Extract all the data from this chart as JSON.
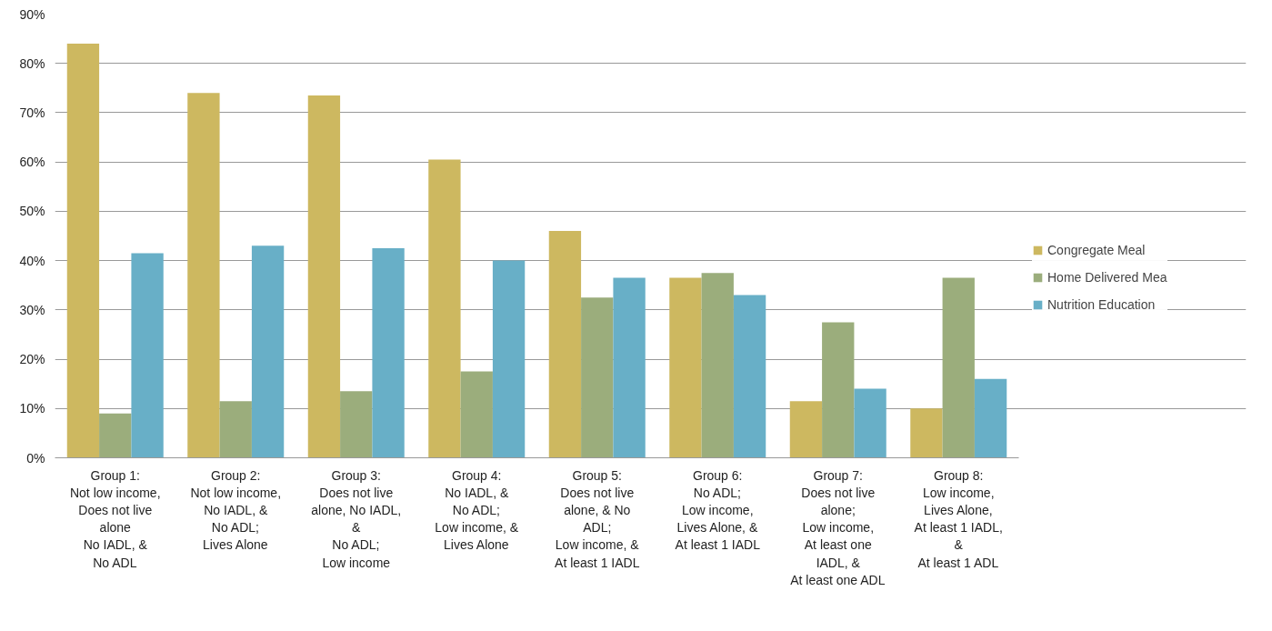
{
  "chart_data": {
    "type": "bar",
    "categories": [
      "Group 1:\nNot low income,\nDoes not live\nalone\nNo IADL, &\nNo ADL",
      "Group 2:\nNot low income,\nNo IADL, &\nNo ADL;\nLives Alone",
      "Group 3:\nDoes not live\nalone, No IADL,\n&\nNo ADL;\nLow income",
      "Group 4:\nNo IADL, &\nNo ADL;\nLow income, &\nLives Alone",
      "Group 5:\nDoes not live\nalone, & No\nADL;\nLow income, &\nAt least 1 IADL",
      "Group 6:\nNo ADL;\nLow income,\nLives Alone, &\nAt least 1 IADL",
      "Group 7:\nDoes not live\nalone;\nLow income,\nAt least one\nIADL, &\nAt least one ADL",
      "Group 8:\nLow income,\nLives Alone,\nAt least 1 IADL,\n&\nAt least 1 ADL"
    ],
    "series": [
      {
        "name": "Congregate Meal",
        "color": "#cdb860",
        "values": [
          84,
          74,
          73.5,
          60.5,
          46,
          36.5,
          11.5,
          10
        ]
      },
      {
        "name": "Home Delivered Mea",
        "color": "#9bad7c",
        "values": [
          9,
          11.5,
          13.5,
          17.5,
          32.5,
          37.5,
          27.5,
          36.5
        ]
      },
      {
        "name": "Nutrition Education",
        "color": "#68afc7",
        "values": [
          41.5,
          43,
          42.5,
          40,
          36.5,
          33,
          14,
          16
        ]
      }
    ],
    "ylim": [
      0,
      90
    ],
    "yticks": [
      {
        "value": 0,
        "label": "0%"
      },
      {
        "value": 10,
        "label": "10%"
      },
      {
        "value": 20,
        "label": "20%"
      },
      {
        "value": 30,
        "label": "30%"
      },
      {
        "value": 40,
        "label": "40%"
      },
      {
        "value": 50,
        "label": "50%"
      },
      {
        "value": 60,
        "label": "60%"
      },
      {
        "value": 70,
        "label": "70%"
      },
      {
        "value": 80,
        "label": "80%"
      },
      {
        "value": 90,
        "label": "90%"
      }
    ],
    "grid": "y",
    "legend": "right"
  }
}
